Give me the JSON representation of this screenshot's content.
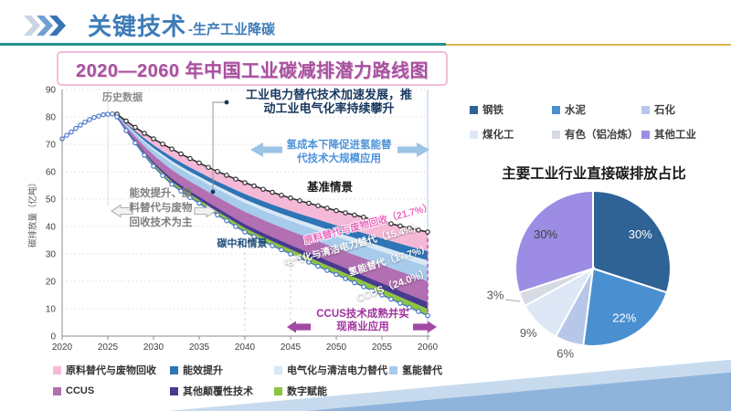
{
  "header": {
    "title": "关键技术",
    "subtitle": "-生产工业降碳"
  },
  "colors": {
    "header_blue": "#3E7CB9",
    "rule_teal": "#21908A",
    "rule_gold": "#D9B84E",
    "roadmap_title_magenta": "#A8509E",
    "roadmap_title_border": "#F3BCD8",
    "history_line": "#4472C4",
    "baseline_line": "#262626",
    "neutral_line": "#4472C4",
    "swoosh_light": "#C8DBEE",
    "swoosh_dark": "#8FB4DC"
  },
  "chart_data": [
    {
      "id": "roadmap",
      "type": "area",
      "title": "2020—2060 年中国工业碳减排潜力路线图",
      "ylabel": "碳排放量（亿吨）",
      "xlim": [
        2020,
        2060
      ],
      "ylim": [
        0,
        90
      ],
      "xticks": [
        2020,
        2025,
        2030,
        2035,
        2040,
        2045,
        2050,
        2055,
        2060
      ],
      "yticks": [
        0,
        10,
        20,
        30,
        40,
        50,
        60,
        70,
        80,
        90
      ],
      "grid": "horizontal-dotted",
      "legend_position": "bottom",
      "history": {
        "label": "历史数据",
        "years": [
          2020,
          2020.5,
          2021,
          2021.5,
          2022,
          2022.5,
          2023,
          2023.5,
          2024,
          2024.5,
          2025,
          2025.5,
          2026
        ],
        "values": [
          72,
          73.3,
          74.5,
          75.8,
          77,
          78.1,
          79,
          79.8,
          80.3,
          80.8,
          81,
          81.1,
          81
        ]
      },
      "baseline": {
        "label": "基准情景",
        "years": [
          2026,
          2027,
          2028,
          2029,
          2030,
          2031,
          2032,
          2033,
          2034,
          2035,
          2036,
          2037,
          2038,
          2039,
          2040,
          2041,
          2042,
          2043,
          2044,
          2045,
          2046,
          2047,
          2048,
          2049,
          2050,
          2051,
          2052,
          2053,
          2054,
          2055,
          2056,
          2057,
          2058,
          2059,
          2060
        ],
        "values": [
          81,
          78.5,
          76.2,
          74,
          72,
          70.1,
          68.3,
          66.5,
          64.8,
          63.2,
          61.6,
          60.1,
          58.7,
          57.3,
          56,
          54.8,
          53.6,
          52.5,
          51.4,
          50.4,
          49.4,
          48.5,
          47.6,
          46.7,
          45.8,
          45,
          44.2,
          43.4,
          42.6,
          41.8,
          41,
          40.2,
          39.4,
          38.7,
          38
        ]
      },
      "carbon_neutral": {
        "label": "碳中和情景",
        "values": [
          80,
          75,
          70.5,
          66,
          62,
          58.6,
          55.4,
          52.9,
          50.6,
          48.5,
          46.3,
          44.2,
          42.1,
          40,
          38,
          36.3,
          34.6,
          33,
          31.5,
          30,
          28.5,
          27,
          25.5,
          24,
          22.5,
          21,
          19.5,
          18,
          16.5,
          15,
          13.5,
          12,
          10.5,
          9,
          7.5
        ]
      },
      "bands": [
        {
          "name": "原料替代与废物回收",
          "share_pct": 21.7,
          "frac": 0.23,
          "color": "#F5B9D8"
        },
        {
          "name": "能效提升",
          "frac": 0.11,
          "color": "#2E75B6"
        },
        {
          "name": "电气化与清洁电力替代",
          "share_pct": 15.4,
          "frac": 0.07,
          "color": "#D9E8F6"
        },
        {
          "name": "氢能替代",
          "share_pct": 17.7,
          "frac": 0.18,
          "color": "#A6CBEB"
        },
        {
          "name": "CCUS",
          "share_pct": 24.0,
          "frac": 0.25,
          "color": "#B26FB2"
        },
        {
          "name": "其他颠覆性技术",
          "frac": 0.08,
          "color": "#473B8F"
        },
        {
          "name": "数字赋能",
          "frac": 0.08,
          "color": "#8CC63E"
        }
      ],
      "band_labels": [
        "原料替代与废物回收（21.7%）",
        "电气化与清洁电力替代（15.4%）",
        "氢能替代（17.7%）",
        "CCUS（24.0%）"
      ],
      "annotations": {
        "electrification": [
          "工业电力替代技术加速发展，推",
          "动工业电气化率持续攀升"
        ],
        "hydrogen": [
          "氢成本下降促进氢能替",
          "代技术大规模应用"
        ],
        "efficiency": [
          "能效提升、原",
          "料替代与废物",
          "回收技术为主"
        ],
        "ccus": [
          "CCUS技术成熟并实",
          "现商业应用"
        ]
      }
    },
    {
      "id": "industry_pie",
      "type": "pie",
      "title": "主要工业行业直接碳排放占比",
      "legend_position": "top",
      "slices": [
        {
          "name": "钢铁",
          "value": 30,
          "label": "30%",
          "color": "#2F6295",
          "label_color": "#FFFFFF",
          "label_r": 64
        },
        {
          "name": "水泥",
          "value": 22,
          "label": "22%",
          "color": "#4A8FD0",
          "label_color": "#FFFFFF",
          "label_r": 64
        },
        {
          "name": "石化",
          "value": 6,
          "label": "6%",
          "color": "#B7C7E9",
          "label_color": "#595959",
          "label_r": 98
        },
        {
          "name": "煤化工",
          "value": 9,
          "label": "9%",
          "color": "#DDE7F5",
          "label_color": "#595959",
          "label_r": 100
        },
        {
          "name": "有色（铝冶炼）",
          "value": 3,
          "label": "3%",
          "color": "#D5DAE3",
          "label_color": "#595959",
          "label_xy": [
            37,
            121
          ],
          "leader": [
            [
              48,
              126
            ],
            [
              64,
              128
            ]
          ]
        },
        {
          "name": "其他工业",
          "value": 30,
          "label": "30%",
          "color": "#9C8CE4",
          "label_color": "#404040",
          "label_r": 64
        }
      ]
    }
  ]
}
